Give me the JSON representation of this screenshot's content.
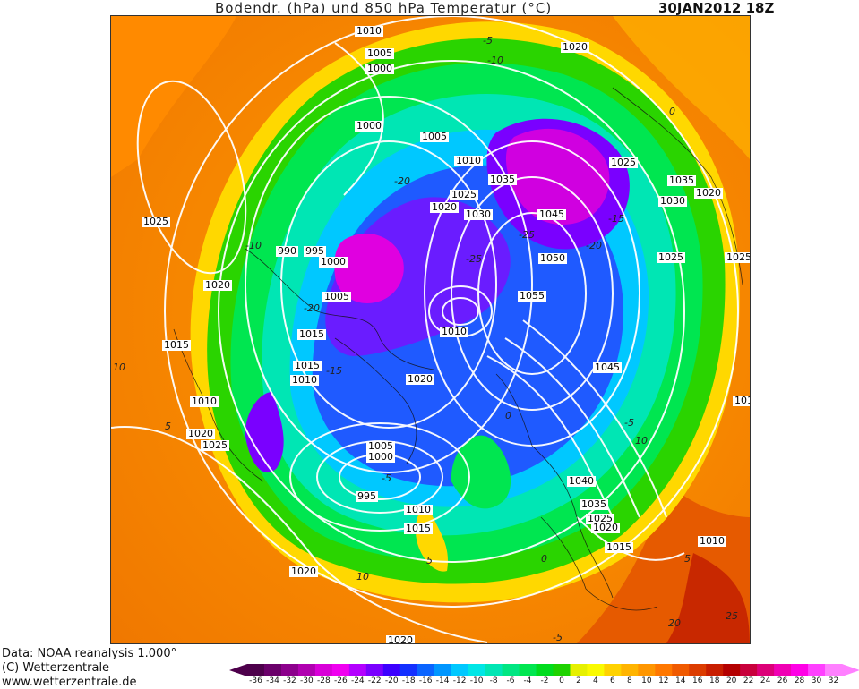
{
  "header": {
    "title": "Bodendr. (hPa) und 850 hPa Temperatur (°C)",
    "date": "30JAN2012 18Z"
  },
  "footer": {
    "data_line": "Data: NOAA reanalysis 1.000°",
    "copyright": "(C) Wetterzentrale",
    "url": "www.wetterzentrale.de"
  },
  "legend": {
    "ticks": [
      "-36",
      "-34",
      "-32",
      "-30",
      "-28",
      "-26",
      "-24",
      "-22",
      "-20",
      "-18",
      "-16",
      "-14",
      "-12",
      "-10",
      "-8",
      "-6",
      "-4",
      "-2",
      "0",
      "2",
      "4",
      "6",
      "8",
      "10",
      "12",
      "14",
      "16",
      "18",
      "20",
      "22",
      "24",
      "26",
      "28",
      "30",
      "32"
    ],
    "colors": [
      "#4d004b",
      "#6a006a",
      "#8c008c",
      "#b000b0",
      "#d800d8",
      "#f000f0",
      "#b400ff",
      "#7a00ff",
      "#3c00ff",
      "#1430ff",
      "#0a64ff",
      "#0096ff",
      "#00c8ff",
      "#00e6e6",
      "#00e6b4",
      "#00e682",
      "#00e650",
      "#00dc1e",
      "#1ed200",
      "#e6f000",
      "#fafa00",
      "#ffd200",
      "#ffb400",
      "#ff9600",
      "#ff7800",
      "#f05a00",
      "#dc3c00",
      "#c81e00",
      "#b40000",
      "#c8003c",
      "#dc0078",
      "#f000b4",
      "#ff00e6",
      "#ff40ff",
      "#ff80ff"
    ]
  },
  "isobars": [
    {
      "t": "1010"
    },
    {
      "t": "1005"
    },
    {
      "t": "1000"
    },
    {
      "t": "1020"
    },
    {
      "t": "1000"
    },
    {
      "t": "1005"
    },
    {
      "t": "1010"
    },
    {
      "t": "1035"
    },
    {
      "t": "1025"
    },
    {
      "t": "1020"
    },
    {
      "t": "1030"
    },
    {
      "t": "1045"
    },
    {
      "t": "1025"
    },
    {
      "t": "1035"
    },
    {
      "t": "1020"
    },
    {
      "t": "1030"
    },
    {
      "t": "1025"
    },
    {
      "t": "1025"
    },
    {
      "t": "1050"
    },
    {
      "t": "990"
    },
    {
      "t": "995"
    },
    {
      "t": "1000"
    },
    {
      "t": "1020"
    },
    {
      "t": "1005"
    },
    {
      "t": "1055"
    },
    {
      "t": "1015"
    },
    {
      "t": "1010"
    },
    {
      "t": "1015"
    },
    {
      "t": "1015"
    },
    {
      "t": "1010"
    },
    {
      "t": "1020"
    },
    {
      "t": "1045"
    },
    {
      "t": "1010"
    },
    {
      "t": "1010"
    },
    {
      "t": "1020"
    },
    {
      "t": "1025"
    },
    {
      "t": "1005"
    },
    {
      "t": "1000"
    },
    {
      "t": "995"
    },
    {
      "t": "1040"
    },
    {
      "t": "1035"
    },
    {
      "t": "1025"
    },
    {
      "t": "1020"
    },
    {
      "t": "1010"
    },
    {
      "t": "1015"
    },
    {
      "t": "1015"
    },
    {
      "t": "1010"
    },
    {
      "t": "1020"
    },
    {
      "t": "1020"
    },
    {
      "t": "1025"
    }
  ],
  "temp_labels": [
    {
      "t": "-5"
    },
    {
      "t": "-10"
    },
    {
      "t": "0"
    },
    {
      "t": "-20"
    },
    {
      "t": "-25"
    },
    {
      "t": "-15"
    },
    {
      "t": "-20"
    },
    {
      "t": "-25"
    },
    {
      "t": "-20"
    },
    {
      "t": "-10"
    },
    {
      "t": "10"
    },
    {
      "t": "5"
    },
    {
      "t": "-5"
    },
    {
      "t": "0"
    },
    {
      "t": "-5"
    },
    {
      "t": "5"
    },
    {
      "t": "10"
    },
    {
      "t": "10"
    },
    {
      "t": "-5"
    },
    {
      "t": "20"
    },
    {
      "t": "25"
    },
    {
      "t": "0"
    },
    {
      "t": "5"
    },
    {
      "t": "-15"
    }
  ]
}
